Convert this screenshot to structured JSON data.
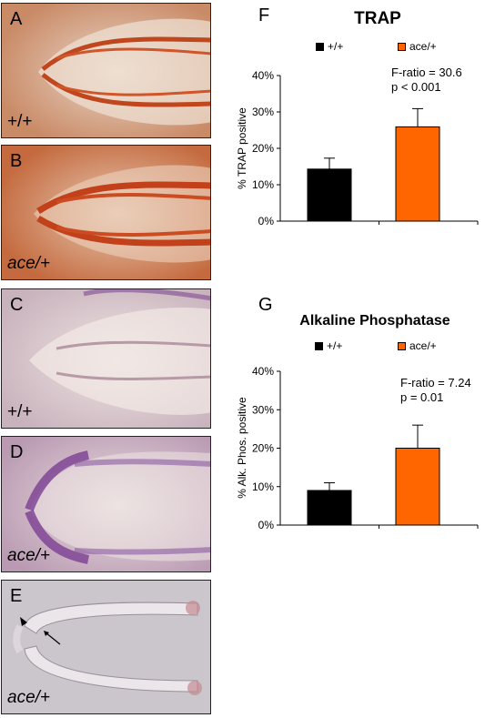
{
  "photos": [
    {
      "letter": "A",
      "genotype": "+/+",
      "stain": "orange"
    },
    {
      "letter": "B",
      "genotype": "ace/+",
      "stain": "orange"
    },
    {
      "letter": "C",
      "genotype": "+/+",
      "stain": "purple"
    },
    {
      "letter": "D",
      "genotype": "ace/+",
      "stain": "purple"
    },
    {
      "letter": "E",
      "genotype": "ace/+",
      "stain": "clear"
    }
  ],
  "chart_data": [
    {
      "type": "bar",
      "panel": "F",
      "title": "TRAP",
      "legend": [
        "+/+",
        "ace/+"
      ],
      "categories": [
        "+/+",
        "ace/+"
      ],
      "values": [
        14.3,
        25.9
      ],
      "errors": [
        3.0,
        5.0
      ],
      "colors": [
        "#000000",
        "#ff6600"
      ],
      "ylabel": "% TRAP positive",
      "ylim": [
        0,
        40
      ],
      "yticks": [
        "0%",
        "10%",
        "20%",
        "30%",
        "40%"
      ],
      "annotation": [
        "F-ratio = 30.6",
        "p < 0.001"
      ]
    },
    {
      "type": "bar",
      "panel": "G",
      "title": "Alkaline Phosphatase",
      "legend": [
        "+/+",
        "ace/+"
      ],
      "categories": [
        "+/+",
        "ace/+"
      ],
      "values": [
        9.0,
        20.0
      ],
      "errors": [
        2.0,
        6.0
      ],
      "colors": [
        "#000000",
        "#ff6600"
      ],
      "ylabel": "% Alk. Phos. positive",
      "ylim": [
        0,
        40
      ],
      "yticks": [
        "0%",
        "10%",
        "20%",
        "30%",
        "40%"
      ],
      "annotation": [
        "F-ratio = 7.24",
        "p = 0.01"
      ]
    }
  ]
}
